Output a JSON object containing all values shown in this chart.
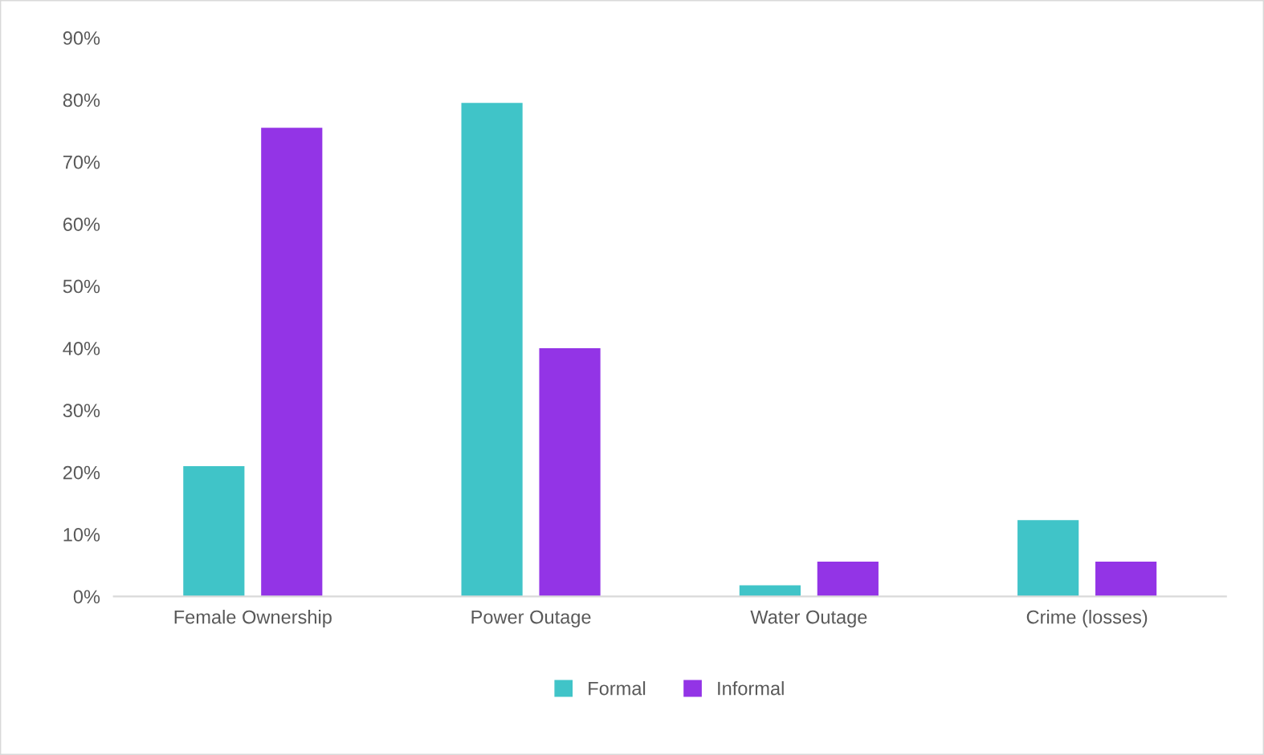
{
  "chart_data": {
    "type": "bar",
    "categories": [
      "Female Ownership",
      "Power Outage",
      "Water Outage",
      "Crime (losses)"
    ],
    "series": [
      {
        "name": "Formal",
        "color": "#40c4c8",
        "values": [
          21,
          79.5,
          1.8,
          12.3
        ]
      },
      {
        "name": "Informal",
        "color": "#9334e6",
        "values": [
          75.5,
          40,
          5.6,
          5.6
        ]
      }
    ],
    "ylim": [
      0,
      90
    ],
    "yticks": [
      {
        "value": 0,
        "label": "0%"
      },
      {
        "value": 10,
        "label": "10%"
      },
      {
        "value": 20,
        "label": "20%"
      },
      {
        "value": 30,
        "label": "30%"
      },
      {
        "value": 40,
        "label": "40%"
      },
      {
        "value": 50,
        "label": "50%"
      },
      {
        "value": 60,
        "label": "60%"
      },
      {
        "value": 70,
        "label": "70%"
      },
      {
        "value": 80,
        "label": "80%"
      },
      {
        "value": 90,
        "label": "90%"
      }
    ],
    "grid": false,
    "legend": "bottom"
  }
}
